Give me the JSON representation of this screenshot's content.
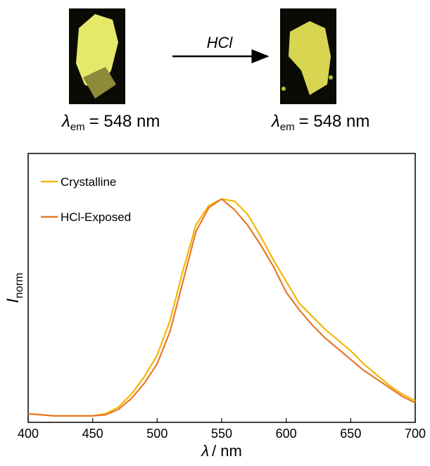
{
  "scheme": {
    "reaction": "HCl",
    "left_label": {
      "symbol": "λ",
      "subscript": "em",
      "text": "= 548 nm"
    },
    "right_label": {
      "symbol": "λ",
      "subscript": "em",
      "text": "= 548 nm"
    }
  },
  "chart_data": {
    "type": "line",
    "xlabel": {
      "symbol": "λ",
      "text": "/ nm"
    },
    "ylabel": {
      "symbol": "I",
      "subscript": "norm"
    },
    "xlim": [
      400,
      700
    ],
    "xticks": [
      400,
      450,
      500,
      550,
      600,
      650,
      700
    ],
    "ylim": [
      -0.03,
      1.21
    ],
    "legend": "upper left",
    "x": [
      400,
      410,
      420,
      430,
      440,
      450,
      460,
      470,
      480,
      490,
      500,
      510,
      520,
      530,
      540,
      550,
      560,
      570,
      580,
      590,
      600,
      610,
      620,
      630,
      640,
      650,
      660,
      670,
      680,
      690,
      700
    ],
    "series": [
      {
        "name": "Crystalline",
        "color": "#f2b705",
        "values": [
          0.01,
          0.005,
          0,
          0,
          0,
          0,
          0.01,
          0.04,
          0.1,
          0.18,
          0.28,
          0.44,
          0.67,
          0.88,
          0.97,
          1.0,
          0.99,
          0.93,
          0.83,
          0.72,
          0.62,
          0.52,
          0.46,
          0.4,
          0.35,
          0.3,
          0.24,
          0.19,
          0.14,
          0.1,
          0.07
        ]
      },
      {
        "name": "HCl-Exposed",
        "color": "#e8782a",
        "values": [
          0.01,
          0.005,
          0,
          0,
          0,
          0,
          0.005,
          0.03,
          0.08,
          0.15,
          0.24,
          0.39,
          0.62,
          0.85,
          0.96,
          1.0,
          0.95,
          0.88,
          0.79,
          0.69,
          0.57,
          0.49,
          0.42,
          0.36,
          0.31,
          0.26,
          0.21,
          0.17,
          0.13,
          0.09,
          0.06
        ]
      }
    ]
  }
}
